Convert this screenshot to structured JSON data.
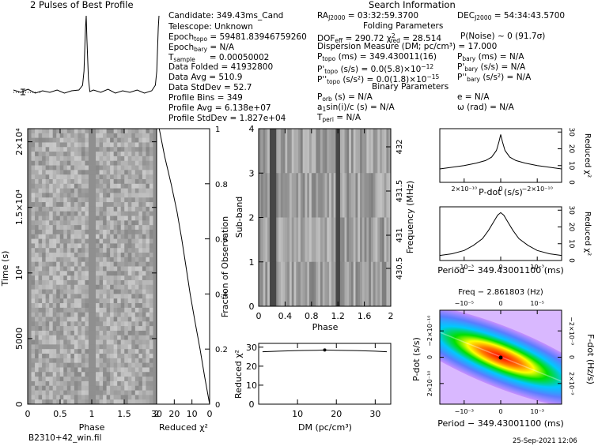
{
  "search_info": {
    "title": "Search Information",
    "candidate": "Candidate:  349.43ms_Cand",
    "telescope": "Telescope:   Unknown",
    "epoch_topo_label": "Epoch",
    "epoch_topo_sub": "topo",
    "epoch_topo_value": " = 59481.83946759260",
    "epoch_bary_label": "Epoch",
    "epoch_bary_sub": "bary",
    "epoch_bary_value": " = N/A",
    "tsample_label": "T",
    "tsample_sub": "sample",
    "tsample_value": "= 0.00050002",
    "data_folded": "Data Folded      = 41932800",
    "data_avg": "Data Avg          = 510.9",
    "data_stddev": "Data StdDev      = 52.7",
    "profile_bins": "Profile Bins      = 349",
    "profile_avg": "Profile Avg       = 6.138e+07",
    "profile_stddev": "Profile StdDev    = 1.827e+04",
    "ra_label": "RA",
    "ra_sub": "J2000",
    "ra_value": " = 03:32:59.3700",
    "dec_label": "DEC",
    "dec_sub": "J2000",
    "dec_value": " = 54:34:43.5700",
    "folding_title": "Folding Parameters",
    "dof_label": "DOF",
    "dof_sub": "eff",
    "dof_value": " = 290.72  χ",
    "chi_sup": "2",
    "chi_sub": "red",
    "chi_value": " = 28.514",
    "pnoise": "P(Noise) ~ 0     (91.7σ)",
    "dm": "Dispersion Measure (DM; pc/cm³) = 17.000",
    "ptopo_label": "P",
    "ptopo_sub": "topo",
    "ptopo_value": " (ms)    = 349.430011(16)",
    "pdtopo_label": "P'",
    "pdtopo_sub": "topo",
    "pdtopo_value": " (s/s) = 0.0(5.8)×10",
    "pdtopo_exp": "−12",
    "pddtopo_label": "P''",
    "pddtopo_sub": "topo",
    "pddtopo_value": " (s/s²) = 0.0(1.8)×10",
    "pddtopo_exp": "−15",
    "pbary_label": "P",
    "pbary_sub": "bary",
    "pbary_value": " (ms) = N/A",
    "pdbary_label": "P'",
    "pdbary_sub": "bary",
    "pdbary_value": " (s/s) = N/A",
    "pddbary_label": "P''",
    "pddbary_sub": "bary",
    "pddbary_value": " (s/s²) = N/A",
    "binary_title": "Binary Parameters",
    "porb_label": "P",
    "porb_sub": "orb",
    "porb_value": " (s) = N/A",
    "a1_label": "a",
    "a1_sub": "1",
    "a1_value": "sin(i)/c (s) = N/A",
    "tperi_label": "T",
    "tperi_sub": "peri",
    "tperi_value": " = N/A",
    "e_value": "e = N/A",
    "omega_value": "ω (rad) = N/A"
  },
  "footer": {
    "filename": "B2310+42_win.fil",
    "date": "25-Sep-2021 12:06"
  },
  "chart_data": [
    {
      "type": "line",
      "title": "2 Pulses of Best Profile",
      "x_phase": [
        0,
        0.1,
        0.2,
        0.3,
        0.4,
        0.5,
        0.6,
        0.7,
        0.8,
        0.9,
        0.95,
        0.97,
        0.99,
        1.0,
        1.01,
        1.03,
        1.05,
        1.1,
        1.2,
        1.3,
        1.4,
        1.5,
        1.6,
        1.7,
        1.8,
        1.9,
        1.95,
        1.97,
        1.99,
        2.0
      ],
      "values": [
        0.06,
        0.03,
        0.07,
        0.02,
        0.05,
        0.03,
        0.06,
        0.02,
        0.05,
        0.06,
        0.12,
        0.3,
        0.85,
        1.0,
        0.7,
        0.2,
        0.04,
        0.06,
        0.03,
        0.07,
        0.02,
        0.05,
        0.03,
        0.06,
        0.02,
        0.05,
        0.12,
        0.3,
        0.85,
        1.0
      ]
    },
    {
      "type": "heatmap",
      "title": "",
      "xlabel": "Phase",
      "ylabel": "Time (s)",
      "xlim": [
        0,
        2
      ],
      "ylim": [
        0,
        21000
      ],
      "x_ticks": [
        "0",
        "0.5",
        "1",
        "1.5",
        "2"
      ],
      "y_ticks": [
        "0",
        "5000",
        "10⁴",
        "1.5×10⁴",
        "2×10⁴"
      ],
      "y2label": "Fraction of Observation",
      "y2_ticks": [
        "0",
        "0.2",
        "0.4",
        "0.6",
        "0.8",
        "1"
      ]
    },
    {
      "type": "line",
      "title": "",
      "xlabel": "Reduced χ²",
      "x_ticks": [
        "30",
        "20",
        "10",
        "0"
      ],
      "xlim": [
        30,
        0
      ],
      "curve_fraction": [
        0.0,
        0.1,
        0.2,
        0.3,
        0.4,
        0.5,
        0.6,
        0.7,
        0.8,
        0.9,
        1.0
      ],
      "curve_chi2": [
        0.0,
        2.8,
        5.4,
        8.3,
        11.0,
        13.4,
        15.8,
        18.5,
        21.8,
        25.5,
        28.5
      ]
    },
    {
      "type": "heatmap",
      "title": "",
      "xlabel": "Phase",
      "ylabel": "Sub-band",
      "y2label": "Frequency (MHz)",
      "xlim": [
        0,
        2
      ],
      "ylim": [
        0,
        4
      ],
      "x_ticks": [
        "0",
        "0.4",
        "0.8",
        "1.2",
        "1.6",
        "2"
      ],
      "y_ticks": [
        "0",
        "1",
        "2",
        "3",
        "4"
      ],
      "y2_ticks": [
        "430.5",
        "431",
        "431.5",
        "432"
      ]
    },
    {
      "type": "line",
      "title": "",
      "xlabel": "DM (pc/cm³)",
      "ylabel": "Reduced χ²",
      "xlim": [
        0,
        34
      ],
      "ylim": [
        0,
        32
      ],
      "x_ticks": [
        "10",
        "20",
        "30"
      ],
      "y_ticks": [
        "0",
        "10",
        "20",
        "30"
      ],
      "x": [
        1,
        5,
        10,
        15,
        17,
        20,
        25,
        30,
        33
      ],
      "y": [
        27.6,
        27.9,
        28.2,
        28.4,
        28.5,
        28.4,
        28.2,
        27.9,
        27.6
      ]
    },
    {
      "type": "line",
      "title": "",
      "xlabel": "P-dot (s/s)",
      "ylabel": "Reduced χ²",
      "x_ticks": [
        "2×10⁻¹⁰",
        "0",
        "−2×10⁻¹⁰"
      ],
      "y_ticks": [
        "0",
        "10",
        "20",
        "30"
      ],
      "ylim": [
        0,
        32
      ],
      "x_rel": [
        -1,
        -0.8,
        -0.6,
        -0.4,
        -0.25,
        -0.15,
        -0.07,
        -0.03,
        0,
        0.03,
        0.07,
        0.15,
        0.25,
        0.4,
        0.6,
        0.8,
        1
      ],
      "y": [
        8,
        9,
        10,
        11.5,
        13,
        15,
        19,
        24,
        28.5,
        24,
        19,
        15,
        13,
        11.5,
        10,
        9,
        8
      ]
    },
    {
      "type": "line",
      "title": "",
      "xlabel": "Period − 349.43001100 (ms)",
      "ylabel": "Reduced χ²",
      "x_ticks": [
        "−10⁻³",
        "0",
        "10⁻³"
      ],
      "y_ticks": [
        "0",
        "10",
        "20",
        "30"
      ],
      "ylim": [
        0,
        32
      ],
      "x_rel": [
        -1,
        -0.8,
        -0.6,
        -0.45,
        -0.3,
        -0.2,
        -0.1,
        -0.05,
        0,
        0.05,
        0.1,
        0.2,
        0.3,
        0.45,
        0.6,
        0.8,
        1
      ],
      "y": [
        3,
        4,
        6,
        9,
        13,
        18,
        24,
        27,
        28.5,
        27,
        24,
        18,
        13,
        9,
        6,
        4,
        3
      ]
    },
    {
      "type": "heatmap",
      "title": "Freq − 2.861803 (Hz)",
      "xlabel": "Period − 349.43001100 (ms)",
      "ylabel": "P-dot (s/s)",
      "y2label": "F-dot (Hz/s)",
      "x_ticks": [
        "−10⁻³",
        "0",
        "10⁻³"
      ],
      "x2_ticks": [
        "−10⁻⁵",
        "0",
        "10⁻⁵"
      ],
      "y_ticks": [
        "2×10⁻¹⁰",
        "0",
        "−2×10⁻¹⁰"
      ],
      "y2_ticks": [
        "2×10⁻⁹",
        "0",
        "−2×10⁻⁹"
      ]
    }
  ]
}
